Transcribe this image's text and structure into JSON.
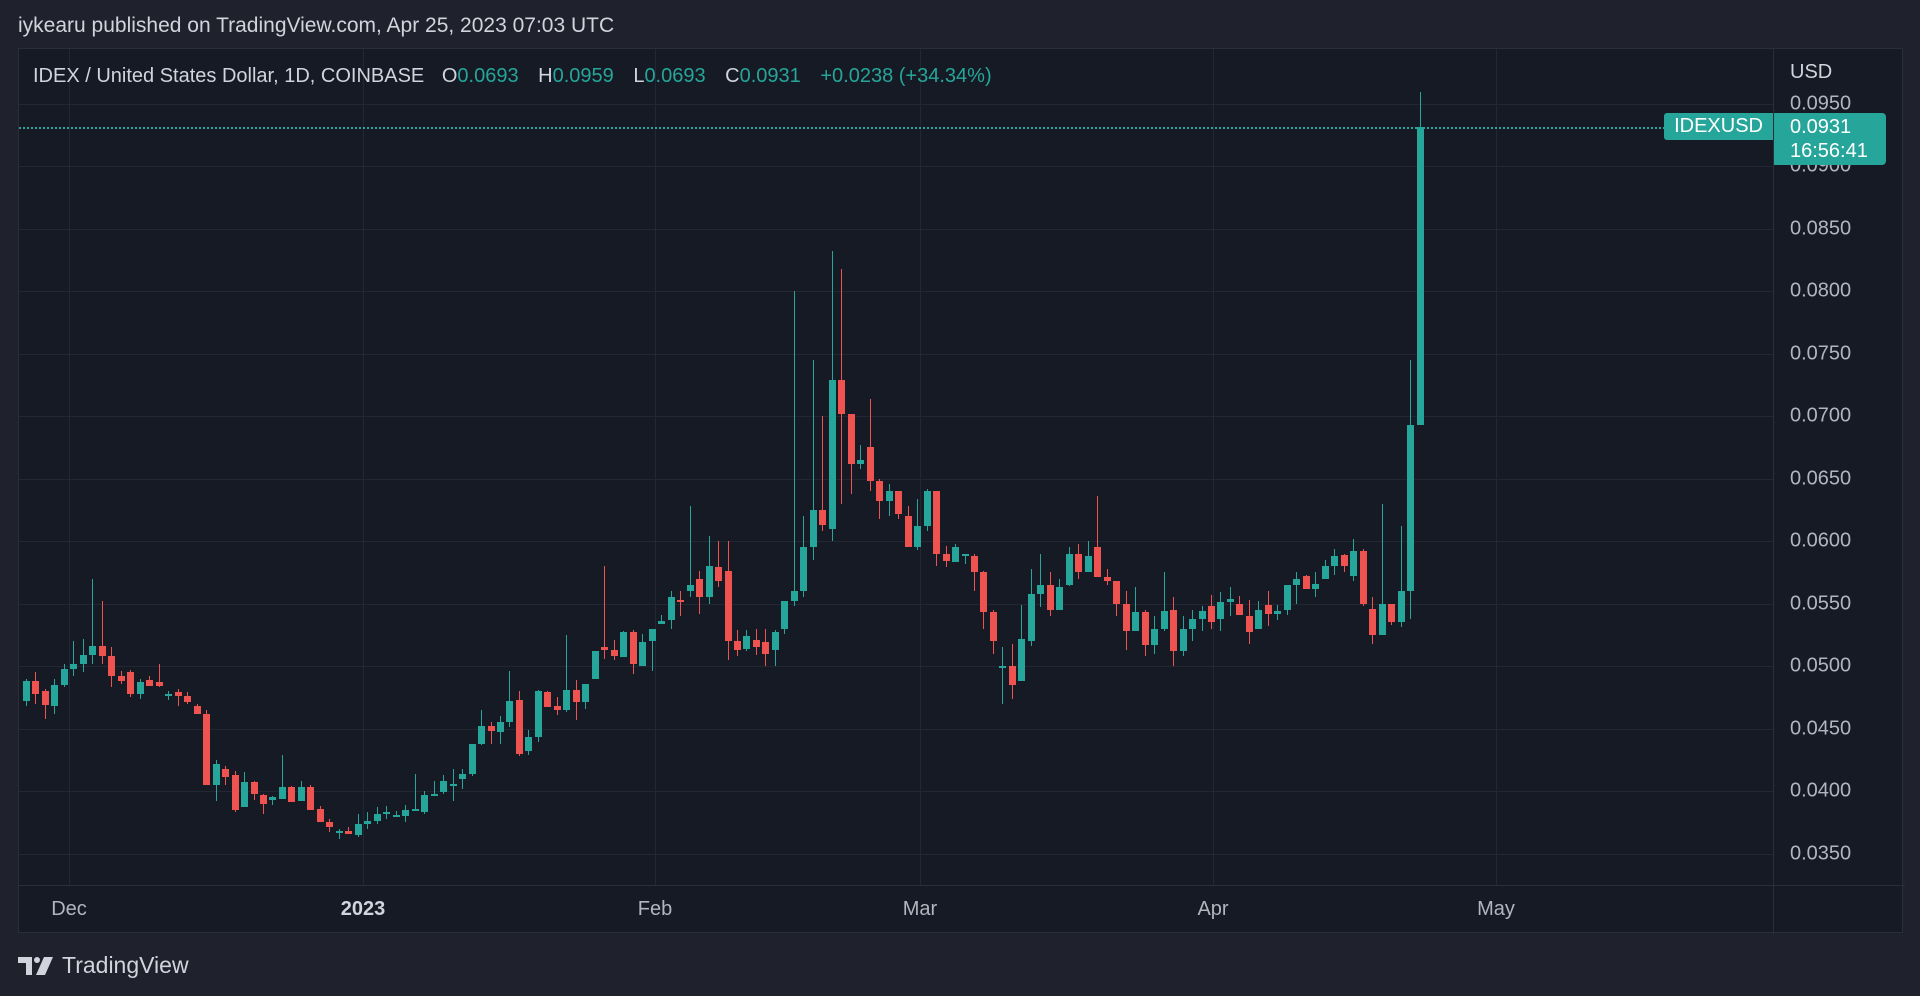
{
  "header": {
    "published": "iykearu published on TradingView.com, Apr 25, 2023 07:03 UTC"
  },
  "legend": {
    "title": "IDEX / United States Dollar, 1D, COINBASE",
    "open_label": "O",
    "open": "0.0693",
    "high_label": "H",
    "high": "0.0959",
    "low_label": "L",
    "low": "0.0693",
    "close_label": "C",
    "close": "0.0931",
    "change": "+0.0238 (+34.34%)"
  },
  "price_axis": {
    "currency": "USD",
    "ticks": [
      "0.0950",
      "0.0900",
      "0.0850",
      "0.0800",
      "0.0750",
      "0.0700",
      "0.0650",
      "0.0600",
      "0.0550",
      "0.0500",
      "0.0450",
      "0.0400",
      "0.0350"
    ]
  },
  "time_axis": {
    "ticks": [
      {
        "label": "Dec",
        "year": false
      },
      {
        "label": "2023",
        "year": true
      },
      {
        "label": "Feb",
        "year": false
      },
      {
        "label": "Mar",
        "year": false
      },
      {
        "label": "Apr",
        "year": false
      },
      {
        "label": "May",
        "year": false
      }
    ]
  },
  "last_price": {
    "symbol": "IDEXUSD",
    "price": "0.0931",
    "countdown": "16:56:41"
  },
  "colors": {
    "up": "#26a69a",
    "down": "#ef5350",
    "background": "#161a25",
    "grid": "#232733"
  },
  "footer": {
    "brand": "TradingView"
  },
  "chart_data": {
    "type": "candlestick",
    "title": "IDEX / United States Dollar, 1D, COINBASE",
    "xlabel": "",
    "ylabel": "USD",
    "ylim": [
      0.033,
      0.097
    ],
    "x_start": "2022-11-26",
    "x_end": "2023-04-25",
    "x_ticks": [
      "Dec",
      "2023",
      "Feb",
      "Mar",
      "Apr",
      "May"
    ],
    "y_ticks": [
      0.035,
      0.04,
      0.045,
      0.05,
      0.055,
      0.06,
      0.065,
      0.07,
      0.075,
      0.08,
      0.085,
      0.09,
      0.095
    ],
    "grid": true,
    "ohlc_format": "[open, high, low, close]",
    "ohlc": [
      [
        0.0472,
        0.049,
        0.0468,
        0.0488
      ],
      [
        0.0488,
        0.0495,
        0.047,
        0.0478
      ],
      [
        0.048,
        0.0482,
        0.0458,
        0.0469
      ],
      [
        0.0468,
        0.049,
        0.0462,
        0.0485
      ],
      [
        0.0485,
        0.0502,
        0.0483,
        0.0498
      ],
      [
        0.0498,
        0.052,
        0.0492,
        0.0502
      ],
      [
        0.0502,
        0.0522,
        0.0495,
        0.0509
      ],
      [
        0.0509,
        0.057,
        0.0502,
        0.0516
      ],
      [
        0.0516,
        0.0552,
        0.0502,
        0.0508
      ],
      [
        0.0508,
        0.0515,
        0.0483,
        0.0492
      ],
      [
        0.0492,
        0.0496,
        0.0486,
        0.0488
      ],
      [
        0.0495,
        0.0497,
        0.0475,
        0.0478
      ],
      [
        0.0478,
        0.049,
        0.0474,
        0.0487
      ],
      [
        0.0489,
        0.0492,
        0.0484,
        0.0484
      ],
      [
        0.0487,
        0.0502,
        0.0483,
        0.0484
      ],
      [
        0.0478,
        0.048,
        0.0473,
        0.0478
      ],
      [
        0.0479,
        0.0482,
        0.0468,
        0.0476
      ],
      [
        0.0476,
        0.0479,
        0.047,
        0.0471
      ],
      [
        0.0468,
        0.047,
        0.0465,
        0.0462
      ],
      [
        0.0462,
        0.0465,
        0.0408,
        0.0405
      ],
      [
        0.0405,
        0.0425,
        0.0392,
        0.0422
      ],
      [
        0.0418,
        0.042,
        0.0405,
        0.0411
      ],
      [
        0.0413,
        0.0416,
        0.0383,
        0.0385
      ],
      [
        0.0387,
        0.0415,
        0.0387,
        0.0407
      ],
      [
        0.0407,
        0.0408,
        0.0393,
        0.0398
      ],
      [
        0.0397,
        0.0398,
        0.0382,
        0.039
      ],
      [
        0.0393,
        0.0396,
        0.0389,
        0.0395
      ],
      [
        0.0394,
        0.0429,
        0.0394,
        0.0403
      ],
      [
        0.0403,
        0.0404,
        0.0391,
        0.0391
      ],
      [
        0.0392,
        0.0408,
        0.0392,
        0.0403
      ],
      [
        0.0403,
        0.0405,
        0.0385,
        0.0385
      ],
      [
        0.0386,
        0.0388,
        0.0375,
        0.0375
      ],
      [
        0.0375,
        0.0378,
        0.0367,
        0.0371
      ],
      [
        0.0368,
        0.037,
        0.0362,
        0.0368
      ],
      [
        0.0368,
        0.0371,
        0.0366,
        0.0366
      ],
      [
        0.0365,
        0.0382,
        0.0363,
        0.0374
      ],
      [
        0.0374,
        0.0383,
        0.037,
        0.0376
      ],
      [
        0.0376,
        0.0387,
        0.0374,
        0.0382
      ],
      [
        0.0382,
        0.0388,
        0.0378,
        0.0383
      ],
      [
        0.0381,
        0.0384,
        0.0379,
        0.0381
      ],
      [
        0.038,
        0.0389,
        0.0375,
        0.0385
      ],
      [
        0.0385,
        0.0414,
        0.0384,
        0.0386
      ],
      [
        0.0383,
        0.04,
        0.0382,
        0.0397
      ],
      [
        0.0397,
        0.0408,
        0.0396,
        0.0398
      ],
      [
        0.0399,
        0.0413,
        0.0398,
        0.0408
      ],
      [
        0.0406,
        0.0418,
        0.0392,
        0.0406
      ],
      [
        0.041,
        0.0418,
        0.0402,
        0.0414
      ],
      [
        0.0414,
        0.0437,
        0.0412,
        0.0438
      ],
      [
        0.0438,
        0.0465,
        0.0437,
        0.0452
      ],
      [
        0.0452,
        0.0455,
        0.0438,
        0.0448
      ],
      [
        0.0447,
        0.046,
        0.0438,
        0.0455
      ],
      [
        0.0455,
        0.0496,
        0.0451,
        0.0472
      ],
      [
        0.0473,
        0.048,
        0.0428,
        0.043
      ],
      [
        0.0432,
        0.0449,
        0.0429,
        0.0443
      ],
      [
        0.0443,
        0.0481,
        0.0439,
        0.048
      ],
      [
        0.0479,
        0.048,
        0.0467,
        0.0467
      ],
      [
        0.0468,
        0.0475,
        0.0461,
        0.0465
      ],
      [
        0.0465,
        0.0525,
        0.0463,
        0.0481
      ],
      [
        0.0481,
        0.0489,
        0.0457,
        0.0471
      ],
      [
        0.0471,
        0.0486,
        0.0466,
        0.0486
      ],
      [
        0.049,
        0.0512,
        0.0492,
        0.0512
      ],
      [
        0.0515,
        0.058,
        0.0506,
        0.0513
      ],
      [
        0.0513,
        0.0521,
        0.0505,
        0.0508
      ],
      [
        0.0507,
        0.0528,
        0.0508,
        0.0527
      ],
      [
        0.0527,
        0.0529,
        0.0494,
        0.0502
      ],
      [
        0.05,
        0.0526,
        0.0502,
        0.0519
      ],
      [
        0.052,
        0.053,
        0.0496,
        0.053
      ],
      [
        0.0534,
        0.0541,
        0.0536,
        0.0536
      ],
      [
        0.0537,
        0.056,
        0.053,
        0.0555
      ],
      [
        0.0553,
        0.056,
        0.054,
        0.0552
      ],
      [
        0.056,
        0.0628,
        0.0555,
        0.0565
      ],
      [
        0.057,
        0.0576,
        0.0542,
        0.0555
      ],
      [
        0.0555,
        0.0604,
        0.055,
        0.058
      ],
      [
        0.0579,
        0.06,
        0.0563,
        0.0568
      ],
      [
        0.0576,
        0.06,
        0.0505,
        0.052
      ],
      [
        0.052,
        0.0529,
        0.0508,
        0.0513
      ],
      [
        0.0514,
        0.0529,
        0.0512,
        0.0524
      ],
      [
        0.0521,
        0.053,
        0.0509,
        0.0515
      ],
      [
        0.0519,
        0.053,
        0.05,
        0.051
      ],
      [
        0.0513,
        0.0529,
        0.05,
        0.0527
      ],
      [
        0.053,
        0.0546,
        0.0526,
        0.0552
      ],
      [
        0.0552,
        0.08,
        0.0548,
        0.056
      ],
      [
        0.056,
        0.062,
        0.0555,
        0.0595
      ],
      [
        0.0595,
        0.0745,
        0.0585,
        0.0625
      ],
      [
        0.0625,
        0.07,
        0.0608,
        0.0613
      ],
      [
        0.061,
        0.0832,
        0.06,
        0.0729
      ],
      [
        0.0729,
        0.0818,
        0.063,
        0.0702
      ],
      [
        0.0702,
        0.0701,
        0.0638,
        0.0662
      ],
      [
        0.0662,
        0.0677,
        0.0658,
        0.0665
      ],
      [
        0.0675,
        0.0714,
        0.064,
        0.0648
      ],
      [
        0.0648,
        0.065,
        0.0618,
        0.0632
      ],
      [
        0.0632,
        0.0646,
        0.062,
        0.064
      ],
      [
        0.064,
        0.064,
        0.0618,
        0.0622
      ],
      [
        0.062,
        0.0628,
        0.0598,
        0.0595
      ],
      [
        0.0595,
        0.0634,
        0.0593,
        0.0612
      ],
      [
        0.0612,
        0.0642,
        0.0608,
        0.064
      ],
      [
        0.064,
        0.064,
        0.058,
        0.059
      ],
      [
        0.059,
        0.0596,
        0.0579,
        0.0584
      ],
      [
        0.0583,
        0.0598,
        0.0583,
        0.0595
      ],
      [
        0.059,
        0.0588,
        0.0582,
        0.059
      ],
      [
        0.0588,
        0.059,
        0.056,
        0.0575
      ],
      [
        0.0575,
        0.0576,
        0.053,
        0.0543
      ],
      [
        0.0543,
        0.0545,
        0.051,
        0.052
      ],
      [
        0.05,
        0.0515,
        0.047,
        0.05
      ],
      [
        0.05,
        0.0518,
        0.0474,
        0.0485
      ],
      [
        0.0488,
        0.0549,
        0.0488,
        0.0522
      ],
      [
        0.052,
        0.0578,
        0.0516,
        0.0558
      ],
      [
        0.0558,
        0.059,
        0.0547,
        0.0565
      ],
      [
        0.0565,
        0.0575,
        0.054,
        0.0545
      ],
      [
        0.0545,
        0.057,
        0.0545,
        0.0563
      ],
      [
        0.0565,
        0.0595,
        0.0564,
        0.059
      ],
      [
        0.059,
        0.0598,
        0.057,
        0.0575
      ],
      [
        0.0575,
        0.06,
        0.058,
        0.0588
      ],
      [
        0.0595,
        0.0636,
        0.0574,
        0.0571
      ],
      [
        0.0571,
        0.0578,
        0.0565,
        0.0568
      ],
      [
        0.0568,
        0.056,
        0.054,
        0.055
      ],
      [
        0.055,
        0.056,
        0.0513,
        0.0528
      ],
      [
        0.0528,
        0.0563,
        0.053,
        0.0543
      ],
      [
        0.0543,
        0.0545,
        0.0508,
        0.0517
      ],
      [
        0.0517,
        0.054,
        0.051,
        0.053
      ],
      [
        0.053,
        0.0575,
        0.0528,
        0.0544
      ],
      [
        0.0545,
        0.0555,
        0.05,
        0.0512
      ],
      [
        0.0512,
        0.054,
        0.0508,
        0.053
      ],
      [
        0.053,
        0.0545,
        0.052,
        0.0538
      ],
      [
        0.0538,
        0.0548,
        0.0528,
        0.0544
      ],
      [
        0.0548,
        0.0557,
        0.053,
        0.0535
      ],
      [
        0.0538,
        0.0559,
        0.0528,
        0.0551
      ],
      [
        0.0551,
        0.0563,
        0.054,
        0.0554
      ],
      [
        0.055,
        0.0556,
        0.0541,
        0.0541
      ],
      [
        0.054,
        0.0553,
        0.0518,
        0.0527
      ],
      [
        0.053,
        0.0552,
        0.053,
        0.0545
      ],
      [
        0.0549,
        0.056,
        0.0532,
        0.0542
      ],
      [
        0.0542,
        0.0549,
        0.0537,
        0.0544
      ],
      [
        0.0545,
        0.0565,
        0.0541,
        0.0565
      ],
      [
        0.0565,
        0.0575,
        0.055,
        0.057
      ],
      [
        0.0572,
        0.0573,
        0.0563,
        0.0562
      ],
      [
        0.0562,
        0.0575,
        0.0555,
        0.0566
      ],
      [
        0.057,
        0.0585,
        0.057,
        0.058
      ],
      [
        0.058,
        0.0594,
        0.0573,
        0.0588
      ],
      [
        0.0589,
        0.059,
        0.0575,
        0.058
      ],
      [
        0.0572,
        0.0602,
        0.0568,
        0.0592
      ],
      [
        0.0592,
        0.0594,
        0.0548,
        0.055
      ],
      [
        0.0546,
        0.0555,
        0.0518,
        0.0525
      ],
      [
        0.0525,
        0.063,
        0.0525,
        0.055
      ],
      [
        0.055,
        0.055,
        0.0533,
        0.0535
      ],
      [
        0.0535,
        0.0612,
        0.0531,
        0.056
      ],
      [
        0.056,
        0.0745,
        0.0538,
        0.0693
      ],
      [
        0.0693,
        0.0959,
        0.0693,
        0.0931
      ]
    ]
  }
}
